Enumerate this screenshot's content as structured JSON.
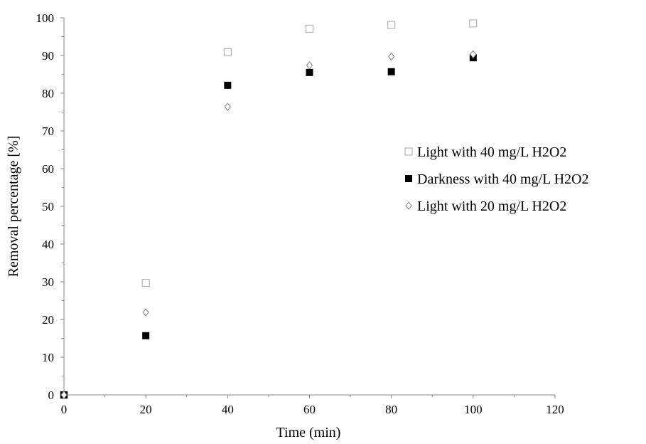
{
  "chart_data": {
    "type": "scatter",
    "title": "",
    "xlabel": "Time (min)",
    "ylabel": "Removal percentage [%]",
    "xlim": [
      0,
      120
    ],
    "ylim": [
      0,
      100
    ],
    "x_ticks": [
      0,
      20,
      40,
      60,
      80,
      100,
      120
    ],
    "y_ticks": [
      0,
      10,
      20,
      30,
      40,
      50,
      60,
      70,
      80,
      90,
      100
    ],
    "grid": false,
    "legend_position": "right",
    "series": [
      {
        "name": "Light with 40 mg/L H2O2",
        "marker": "open-square",
        "color": "#a6a6a6",
        "x": [
          0,
          20,
          40,
          60,
          80,
          100
        ],
        "y": [
          0,
          29.7,
          90.9,
          97.1,
          98.1,
          98.5
        ]
      },
      {
        "name": "Darkness with 40 mg/L H2O2",
        "marker": "filled-square",
        "color": "#000000",
        "x": [
          0,
          20,
          40,
          60,
          80,
          100
        ],
        "y": [
          0,
          15.7,
          82.1,
          85.5,
          85.7,
          89.4
        ]
      },
      {
        "name": "Light with 20 mg/L H2O2",
        "marker": "open-diamond",
        "color": "#808080",
        "x": [
          0,
          20,
          40,
          60,
          80,
          100
        ],
        "y": [
          0,
          21.9,
          76.4,
          87.4,
          89.7,
          90.3
        ]
      }
    ]
  }
}
